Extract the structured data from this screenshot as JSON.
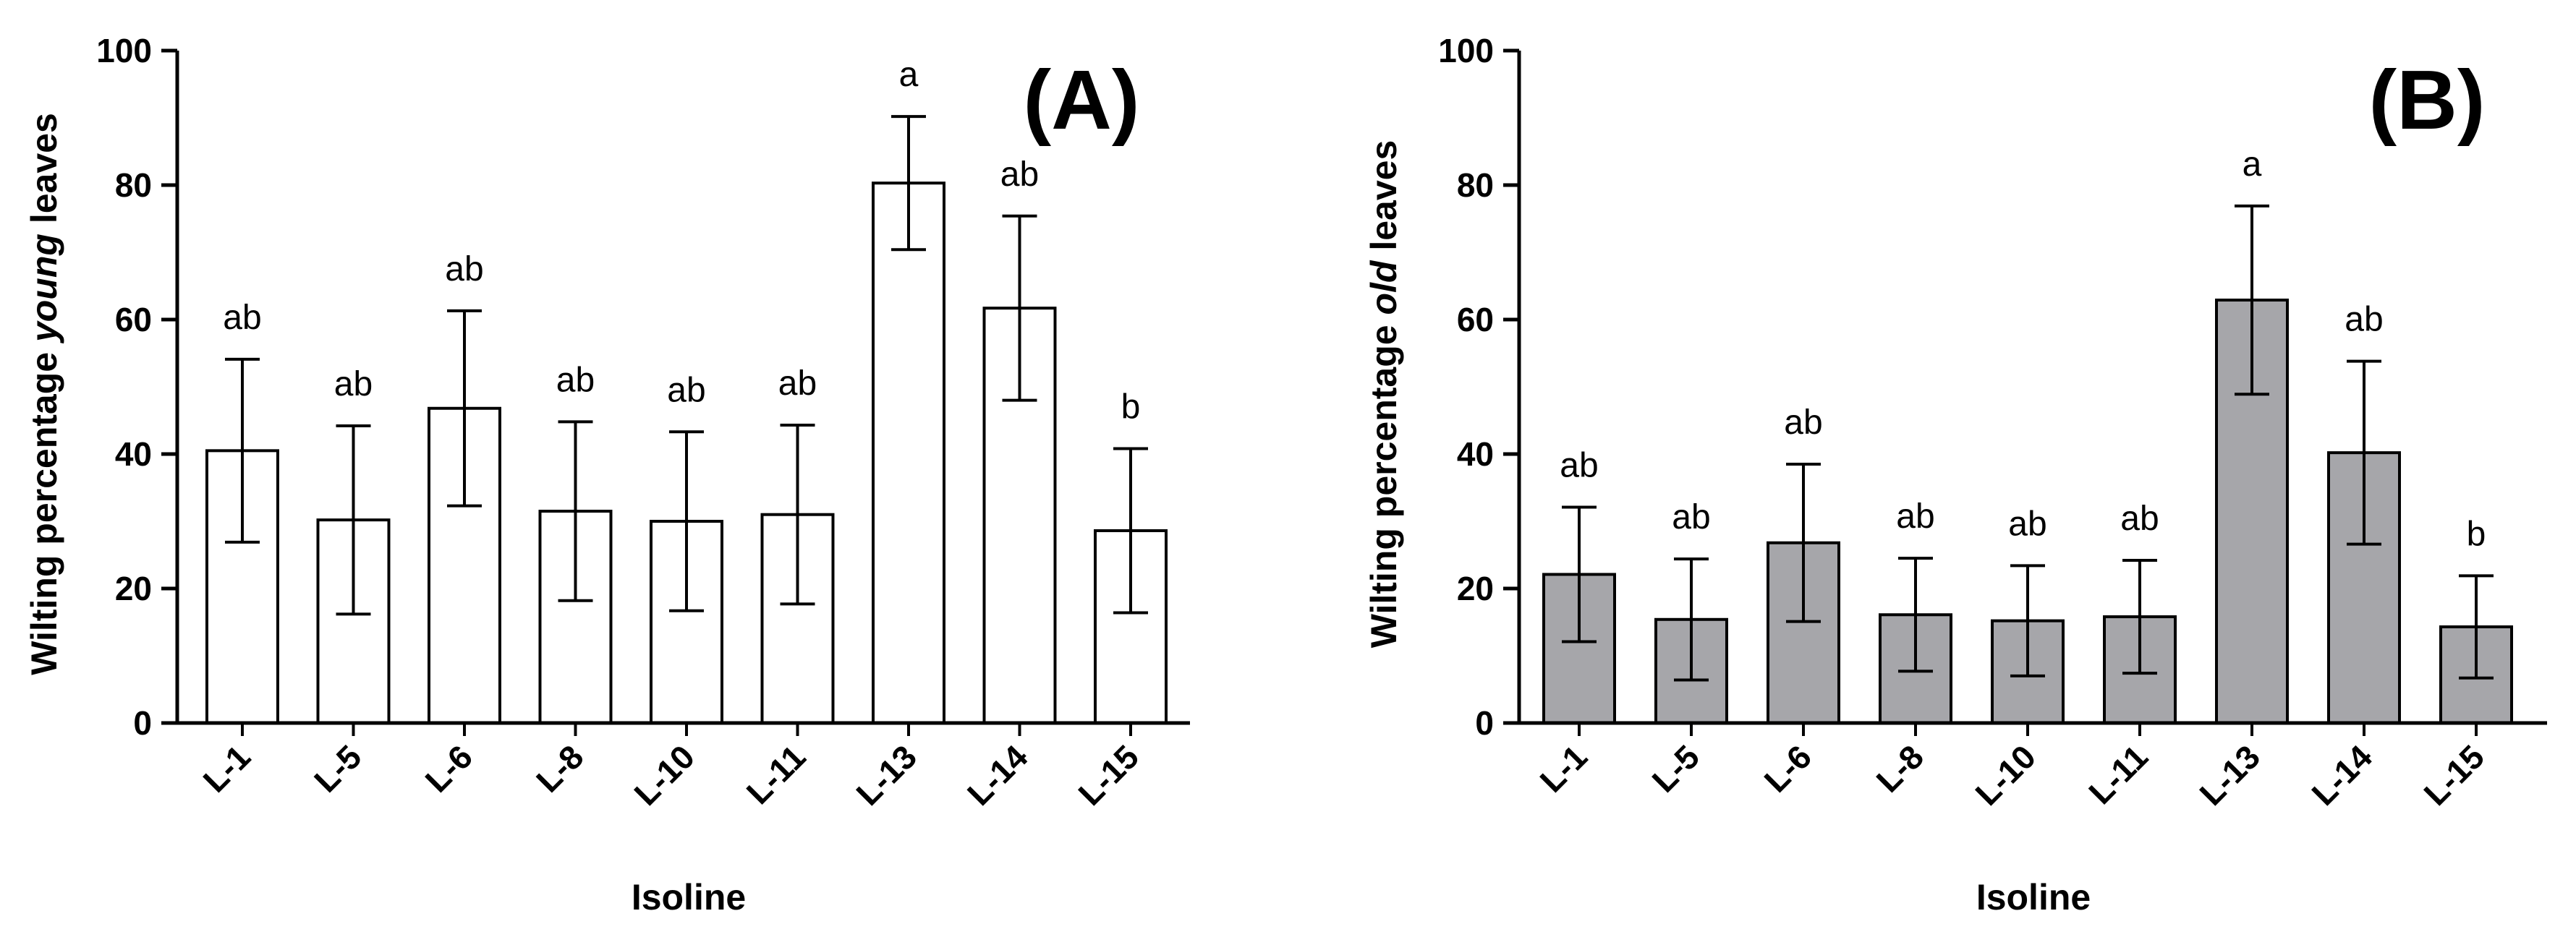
{
  "chart_data": [
    {
      "type": "bar",
      "panel_label": "(A)",
      "categories": [
        "L-1",
        "L-5",
        "L-6",
        "L-8",
        "L-10",
        "L-11",
        "L-13",
        "L-14",
        "L-15"
      ],
      "series": [
        {
          "name": "young leaves",
          "values": [
            40.5,
            30.2,
            46.8,
            31.5,
            30.0,
            31.0,
            80.3,
            61.7,
            28.6
          ],
          "errors": [
            13.6,
            14.0,
            14.5,
            13.3,
            13.3,
            13.3,
            9.9,
            13.7,
            12.2
          ],
          "significance": [
            "ab",
            "ab",
            "ab",
            "ab",
            "ab",
            "ab",
            "a",
            "ab",
            "b"
          ],
          "color": "#ffffff"
        }
      ],
      "title": "",
      "xlabel": "Isoline",
      "ylabel_prefix": "Wilting percentage ",
      "ylabel_emphasis": "young",
      "ylabel_suffix": " leaves",
      "ylim": [
        0,
        100
      ],
      "yticks": [
        0,
        20,
        40,
        60,
        80,
        100
      ],
      "grid": false,
      "legend": "none"
    },
    {
      "type": "bar",
      "panel_label": "(B)",
      "categories": [
        "L-1",
        "L-5",
        "L-6",
        "L-8",
        "L-10",
        "L-11",
        "L-13",
        "L-14",
        "L-15"
      ],
      "series": [
        {
          "name": "old leaves",
          "values": [
            22.1,
            15.4,
            26.8,
            16.1,
            15.2,
            15.8,
            62.9,
            40.2,
            14.3
          ],
          "errors": [
            10.0,
            9.0,
            11.7,
            8.4,
            8.2,
            8.4,
            14.0,
            13.6,
            7.6
          ],
          "significance": [
            "ab",
            "ab",
            "ab",
            "ab",
            "ab",
            "ab",
            "a",
            "ab",
            "b"
          ],
          "color": "#a6a6aa"
        }
      ],
      "title": "",
      "xlabel": "Isoline",
      "ylabel_prefix": "Wilting percentage ",
      "ylabel_emphasis": "old",
      "ylabel_suffix": " leaves",
      "ylim": [
        0,
        100
      ],
      "yticks": [
        0,
        20,
        40,
        60,
        80,
        100
      ],
      "grid": false,
      "legend": "none"
    }
  ]
}
